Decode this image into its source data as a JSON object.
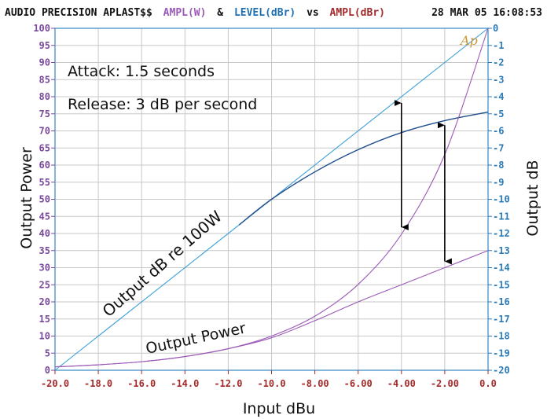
{
  "header": {
    "left": "AUDIO PRECISION APLAST$$",
    "ampl1": "AMPL(W)",
    "amp": "&",
    "level": "LEVEL(dBr)",
    "vs": "vs",
    "ampl2": "AMPL(dBr)",
    "timestamp": "28 MAR 05 16:08:53"
  },
  "logo": "Ap",
  "annotations": {
    "attack": "Attack: 1.5 seconds",
    "release": "Release: 3 dB per second",
    "output_db_label": "Output dB re 100W",
    "output_power_label": "Output Power"
  },
  "colors": {
    "grid": "#c8c8c8",
    "frame": "#5a9fd0",
    "left_axis": "#7a4a9a",
    "right_axis": "#2a7ab8",
    "bottom_axis": "#a22a2a",
    "purple_series": "#9b59b6",
    "blue_series": "#1f4e8c",
    "reference_line": "#3aa0d8",
    "arrow": "#000000",
    "logo": "#c89a3a"
  },
  "chart_data": {
    "type": "line",
    "xlabel": "Input dBu",
    "ylabel_left": "Output Power",
    "ylabel_right": "Output dB",
    "xlim": [
      -20,
      0
    ],
    "ylim_left": [
      0,
      100
    ],
    "ylim_right": [
      -20,
      0
    ],
    "x_ticks": [
      "-20.0",
      "-18.0",
      "-16.0",
      "-14.0",
      "-12.0",
      "-10.0",
      "-8.00",
      "-6.00",
      "-4.00",
      "-2.00",
      "0.0"
    ],
    "y_left_ticks": [
      "100",
      "95",
      "90",
      "85",
      "80",
      "75",
      "70",
      "65",
      "60",
      "55",
      "50",
      "45",
      "40",
      "35",
      "30",
      "25",
      "20",
      "15",
      "10",
      "5",
      "0"
    ],
    "y_right_ticks": [
      "0",
      "-1",
      "-2",
      "-3",
      "-4",
      "-5",
      "-6",
      "-7",
      "-8",
      "-9",
      "-10",
      "-11",
      "-12",
      "-13",
      "-14",
      "-15",
      "-16",
      "-17",
      "-18",
      "-19",
      "-20"
    ],
    "series": [
      {
        "axis": "right",
        "x": [
          -20,
          0
        ],
        "y": [
          -20,
          0
        ]
      },
      {
        "axis": "right",
        "x": [
          -11.5,
          -10,
          -8,
          -6,
          -4,
          -2,
          0
        ],
        "y": [
          -11.5,
          -10,
          -8.4,
          -7.1,
          -6.1,
          -5.4,
          -4.9
        ]
      },
      {
        "axis": "left",
        "x": [
          -20,
          -18,
          -16,
          -14,
          -12,
          -10,
          -8,
          -6,
          -4,
          -2,
          0
        ],
        "y": [
          1,
          1.6,
          2.5,
          4,
          6.3,
          10,
          15.8,
          25.1,
          39.8,
          63.1,
          100
        ]
      },
      {
        "axis": "left",
        "x": [
          -20,
          -18,
          -16,
          -14,
          -12,
          -10,
          -8,
          -6,
          -4,
          -2,
          0
        ],
        "y": [
          1,
          1.6,
          2.5,
          4,
          6.3,
          9.5,
          14.5,
          20,
          25,
          30,
          35
        ]
      }
    ],
    "arrows": [
      {
        "x": -4,
        "y_from_right": -4.0,
        "y_to_right": -12.0
      },
      {
        "x": -2,
        "y_from_right": -5.3,
        "y_to_right": -14.0
      }
    ]
  }
}
